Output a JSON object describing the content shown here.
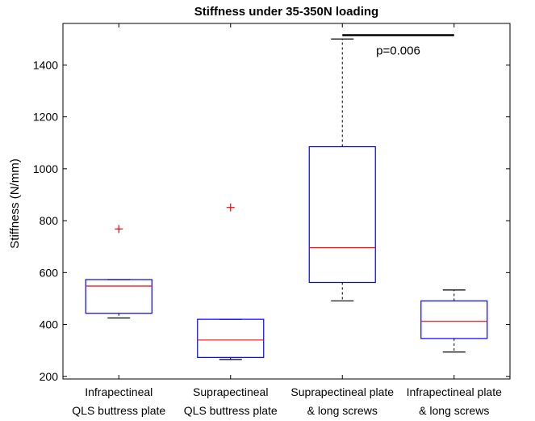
{
  "chart_data": {
    "type": "box",
    "title": "Stiffness under 35-350N loading",
    "xlabel": "",
    "ylabel": "Stiffness (N/mm)",
    "ylim": [
      190,
      1560
    ],
    "yticks": [
      200,
      400,
      600,
      800,
      1000,
      1200,
      1400
    ],
    "grid": false,
    "categories": [
      [
        "Infrapectineal",
        "QLS buttress plate"
      ],
      [
        "Suprapectineal",
        "QLS buttress plate"
      ],
      [
        "Suprapectineal plate",
        "& long screws"
      ],
      [
        "Infrapectineal plate",
        "& long screws"
      ]
    ],
    "boxes": [
      {
        "whisker_low": 425,
        "q1": 443,
        "median": 548,
        "q3": 573,
        "whisker_high": 573,
        "outliers": [
          768
        ]
      },
      {
        "whisker_low": 265,
        "q1": 273,
        "median": 340,
        "q3": 420,
        "whisker_high": 420,
        "outliers": [
          851
        ]
      },
      {
        "whisker_low": 491,
        "q1": 562,
        "median": 696,
        "q3": 1085,
        "whisker_high": 1500,
        "outliers": []
      },
      {
        "whisker_low": 294,
        "q1": 346,
        "median": 412,
        "q3": 491,
        "whisker_high": 533,
        "outliers": []
      }
    ],
    "annotation": {
      "text": "p=0.006",
      "from_category": 2,
      "to_category": 3,
      "y": 1515
    },
    "colors": {
      "box": "#0000ff",
      "median": "#ff0000",
      "whisker": "#000000",
      "outlier": "#ff0000",
      "axes": "#000000"
    }
  }
}
